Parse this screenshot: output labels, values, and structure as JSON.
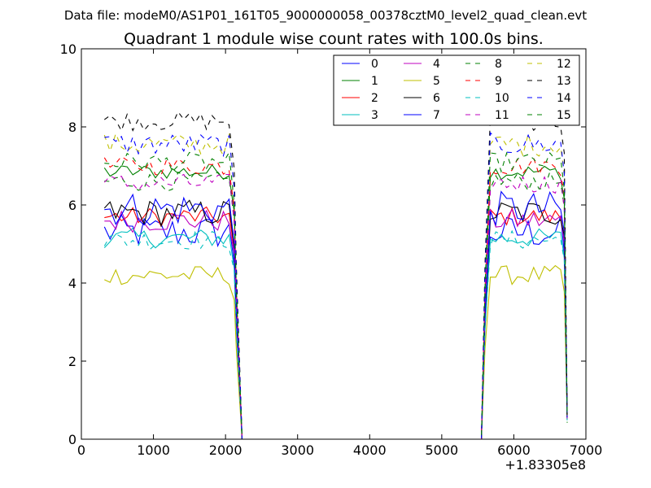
{
  "suptitle": "Data file: modeM0/AS1P01_161T05_9000000058_00378cztM0_level2_quad_clean.evt",
  "chart_data": {
    "type": "line",
    "title": "Quadrant 1 module wise count rates with 100.0s bins.",
    "xlabel": "",
    "ylabel": "",
    "x_offset_label": "+1.83305e8",
    "xlim": [
      0,
      7000
    ],
    "ylim": [
      0,
      10
    ],
    "x_ticks": [
      0,
      1000,
      2000,
      3000,
      4000,
      5000,
      6000,
      7000
    ],
    "y_ticks": [
      0,
      2,
      4,
      6,
      8,
      10
    ],
    "x_tick_labels": [
      "0",
      "1000",
      "2000",
      "3000",
      "4000",
      "5000",
      "6000",
      "7000"
    ],
    "y_tick_labels": [
      "0",
      "2",
      "4",
      "6",
      "8",
      "10"
    ],
    "grid": false,
    "legend_position": "top-right",
    "segments": [
      {
        "x_start": 320,
        "x_end": 2050,
        "step": 78.6
      },
      {
        "x_start": 5600,
        "x_end": 6650,
        "step": 75.0
      }
    ],
    "ramp": {
      "x_drop": [
        2120,
        2150,
        2230
      ],
      "x_rise": 5550,
      "x_end_drop": [
        6700,
        6740
      ]
    },
    "series": [
      {
        "name": "0",
        "color": "#0000ff",
        "dash": "solid",
        "base": 5.3,
        "amp": 0.45
      },
      {
        "name": "1",
        "color": "#008000",
        "dash": "solid",
        "base": 6.85,
        "amp": 0.2
      },
      {
        "name": "2",
        "color": "#ff0000",
        "dash": "solid",
        "base": 5.7,
        "amp": 0.25
      },
      {
        "name": "3",
        "color": "#00bfbf",
        "dash": "solid",
        "base": 5.15,
        "amp": 0.25
      },
      {
        "name": "4",
        "color": "#bf00bf",
        "dash": "solid",
        "base": 5.6,
        "amp": 0.3
      },
      {
        "name": "5",
        "color": "#bfbf00",
        "dash": "solid",
        "base": 4.2,
        "amp": 0.25
      },
      {
        "name": "6",
        "color": "#000000",
        "dash": "solid",
        "base": 5.8,
        "amp": 0.35
      },
      {
        "name": "7",
        "color": "#0000ff",
        "dash": "solid",
        "base": 5.9,
        "amp": 0.45
      },
      {
        "name": "8",
        "color": "#008000",
        "dash": "dashed",
        "base": 6.6,
        "amp": 0.25
      },
      {
        "name": "9",
        "color": "#ff0000",
        "dash": "dashed",
        "base": 7.0,
        "amp": 0.25
      },
      {
        "name": "10",
        "color": "#00bfbf",
        "dash": "dashed",
        "base": 5.1,
        "amp": 0.25
      },
      {
        "name": "11",
        "color": "#bf00bf",
        "dash": "dashed",
        "base": 6.55,
        "amp": 0.25
      },
      {
        "name": "12",
        "color": "#bfbf00",
        "dash": "dashed",
        "base": 7.55,
        "amp": 0.3
      },
      {
        "name": "13",
        "color": "#000000",
        "dash": "dashed",
        "base": 8.15,
        "amp": 0.25
      },
      {
        "name": "14",
        "color": "#0000ff",
        "dash": "dashed",
        "base": 7.55,
        "amp": 0.3
      },
      {
        "name": "15",
        "color": "#008000",
        "dash": "dashed",
        "base": 7.1,
        "amp": 0.25
      }
    ]
  }
}
